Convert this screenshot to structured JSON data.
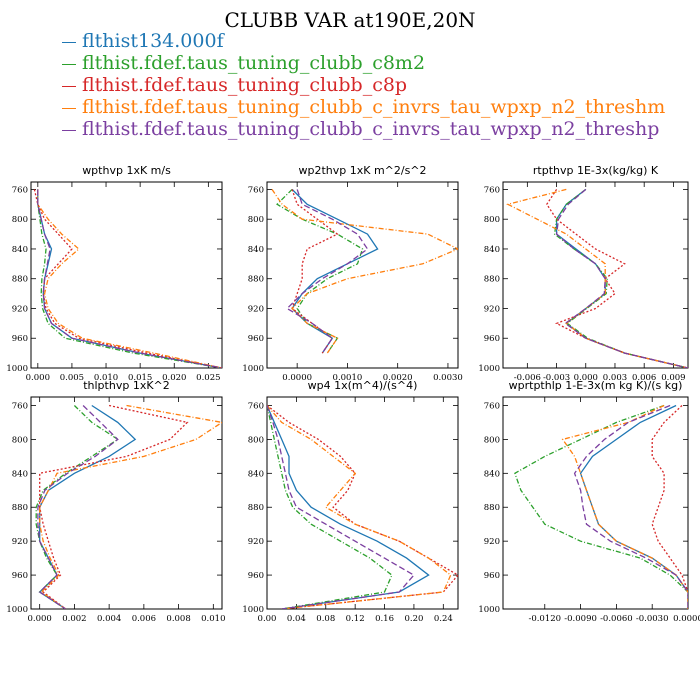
{
  "title": "CLUBB VAR at190E,20N",
  "legend": [
    {
      "label": "flthist134.000f",
      "color": "#1f77b4"
    },
    {
      "label": "flthist.fdef.taus_tuning_clubb_c8m2",
      "color": "#2ca02c"
    },
    {
      "label": "flthist.fdef.taus_tuning_clubb_c8p",
      "color": "#d62728"
    },
    {
      "label": "flthist.fdef.taus_tuning_clubb_c_invrs_tau_wpxp_n2_threshm",
      "color": "#ff7f0e"
    },
    {
      "label": "flthist.fdef.taus_tuning_clubb_c_invrs_tau_wpxp_n2_threshp",
      "color": "#7b3fa0"
    }
  ],
  "chart_data": [
    {
      "type": "line",
      "title": "wpthvp  1xK m/s",
      "xlim": [
        -0.001,
        0.027
      ],
      "ylim": [
        1000,
        750
      ],
      "xticks": [
        0.0,
        0.005,
        0.01,
        0.015,
        0.02,
        0.025
      ],
      "xtick_labels": [
        "0.000",
        "0.005",
        "0.010",
        "0.015",
        "0.020",
        "0.025"
      ],
      "yticks": [
        760,
        800,
        840,
        880,
        920,
        960,
        1000
      ],
      "y": [
        760,
        780,
        800,
        820,
        840,
        860,
        880,
        900,
        920,
        940,
        960,
        980,
        1000
      ],
      "series": [
        {
          "color": "#1f77b4",
          "dash": "",
          "values": [
            0.0,
            0.0,
            0.0005,
            0.001,
            0.002,
            0.0015,
            0.001,
            0.0008,
            0.001,
            0.002,
            0.005,
            0.015,
            0.027
          ]
        },
        {
          "color": "#2ca02c",
          "dash": "5,2,1,2",
          "values": [
            0.0,
            0.0,
            0.0003,
            0.0006,
            0.0012,
            0.001,
            0.0006,
            0.0005,
            0.0007,
            0.0015,
            0.004,
            0.014,
            0.027
          ]
        },
        {
          "color": "#d62728",
          "dash": "2,2",
          "values": [
            -0.0005,
            0.0,
            0.001,
            0.003,
            0.005,
            0.003,
            0.001,
            0.0008,
            0.0012,
            0.0025,
            0.006,
            0.016,
            0.027
          ]
        },
        {
          "color": "#ff7f0e",
          "dash": "5,2,1,2",
          "values": [
            0.0,
            0.0,
            0.0015,
            0.0035,
            0.006,
            0.0035,
            0.0015,
            0.001,
            0.0015,
            0.003,
            0.0065,
            0.017,
            0.027
          ]
        },
        {
          "color": "#7b3fa0",
          "dash": "6,3",
          "values": [
            0.0,
            0.0,
            0.0005,
            0.001,
            0.0018,
            0.0014,
            0.001,
            0.0008,
            0.001,
            0.002,
            0.005,
            0.015,
            0.027
          ]
        }
      ]
    },
    {
      "type": "line",
      "title": "wp2thvp  1xK m^2/s^2",
      "xlim": [
        -0.0006,
        0.0032
      ],
      "ylim": [
        1000,
        750
      ],
      "xticks": [
        0.0,
        0.001,
        0.002,
        0.003
      ],
      "xtick_labels": [
        "0.0000",
        "0.0010",
        "0.0020",
        "0.0030"
      ],
      "yticks": [
        760,
        800,
        840,
        880,
        920,
        960,
        1000
      ],
      "y": [
        760,
        780,
        800,
        820,
        840,
        860,
        880,
        900,
        920,
        940,
        960,
        980
      ],
      "series": [
        {
          "color": "#1f77b4",
          "dash": "",
          "values": [
            -0.0001,
            0.0002,
            0.0008,
            0.0014,
            0.0016,
            0.001,
            0.0004,
            0.0001,
            -0.0001,
            0.0002,
            0.0007,
            0.0005
          ]
        },
        {
          "color": "#2ca02c",
          "dash": "5,2,1,2",
          "values": [
            -0.0001,
            -0.0004,
            0.0001,
            0.0008,
            0.0013,
            0.0012,
            0.0006,
            0.0002,
            0.0,
            0.0002,
            0.0008,
            0.0006
          ]
        },
        {
          "color": "#d62728",
          "dash": "2,2",
          "values": [
            -0.0001,
            0.0,
            0.0004,
            0.0008,
            0.0002,
            0.0001,
            0.0001,
            0.0,
            -0.0001,
            0.0003,
            0.0007,
            0.0005
          ]
        },
        {
          "color": "#ff7f0e",
          "dash": "5,2,1,2",
          "values": [
            -0.0005,
            -0.0003,
            0.0001,
            0.0026,
            0.0032,
            0.0025,
            0.001,
            0.0002,
            -0.0001,
            0.0002,
            0.0008,
            0.0006
          ]
        },
        {
          "color": "#7b3fa0",
          "dash": "6,3",
          "values": [
            0.0,
            0.0001,
            0.0007,
            0.0012,
            0.0014,
            0.001,
            0.0005,
            0.0001,
            -0.0002,
            0.0003,
            0.0007,
            0.0005
          ]
        }
      ]
    },
    {
      "type": "line",
      "title": "rtpthvp  1E-3x(kg/kg) K",
      "xlim": [
        -0.0085,
        0.0105
      ],
      "ylim": [
        1000,
        750
      ],
      "xticks": [
        -0.006,
        -0.003,
        0.0,
        0.003,
        0.006,
        0.009
      ],
      "xtick_labels": [
        "-0.006",
        "-0.003",
        "0.000",
        "0.003",
        "0.006",
        "0.009"
      ],
      "yticks": [
        760,
        800,
        840,
        880,
        920,
        960,
        1000
      ],
      "y": [
        760,
        780,
        800,
        820,
        840,
        860,
        880,
        900,
        920,
        940,
        960,
        980,
        1000
      ],
      "series": [
        {
          "color": "#1f77b4",
          "dash": "",
          "values": [
            0.0,
            -0.002,
            -0.003,
            -0.003,
            -0.001,
            0.001,
            0.002,
            0.002,
            0.0,
            -0.002,
            0.0,
            0.004,
            0.0105
          ]
        },
        {
          "color": "#2ca02c",
          "dash": "5,2,1,2",
          "values": [
            0.0,
            -0.002,
            -0.003,
            -0.0032,
            -0.0012,
            0.001,
            0.0022,
            0.0021,
            0.0001,
            -0.0019,
            0.0002,
            0.004,
            0.0105
          ]
        },
        {
          "color": "#d62728",
          "dash": "2,2",
          "values": [
            -0.003,
            -0.004,
            -0.003,
            -0.001,
            0.001,
            0.004,
            0.002,
            0.003,
            0.001,
            -0.003,
            0.0,
            0.004,
            0.0105
          ]
        },
        {
          "color": "#ff7f0e",
          "dash": "5,2,1,2",
          "values": [
            -0.002,
            -0.008,
            -0.005,
            -0.002,
            0.0,
            0.002,
            0.002,
            0.002,
            0.0,
            -0.002,
            0.0,
            0.004,
            0.0105
          ]
        },
        {
          "color": "#7b3fa0",
          "dash": "6,3",
          "values": [
            0.0,
            -0.0018,
            -0.0028,
            -0.003,
            -0.0012,
            0.001,
            0.002,
            0.0019,
            0.0,
            -0.0021,
            0.0,
            0.004,
            0.0105
          ]
        }
      ]
    },
    {
      "type": "line",
      "title": "thlpthvp  1xK^2",
      "xlim": [
        -0.0005,
        0.0105
      ],
      "ylim": [
        1000,
        750
      ],
      "xticks": [
        0.0,
        0.002,
        0.004,
        0.006,
        0.008,
        0.01
      ],
      "xtick_labels": [
        "0.000",
        "0.002",
        "0.004",
        "0.006",
        "0.008",
        "0.010"
      ],
      "yticks": [
        760,
        800,
        840,
        880,
        920,
        960,
        1000
      ],
      "y": [
        760,
        780,
        800,
        820,
        840,
        860,
        880,
        900,
        920,
        940,
        960,
        980,
        1000
      ],
      "series": [
        {
          "color": "#1f77b4",
          "dash": "",
          "values": [
            0.003,
            0.0045,
            0.0055,
            0.004,
            0.002,
            0.0005,
            0.0,
            0.0,
            0.0,
            0.0005,
            0.001,
            0.0,
            0.0015
          ]
        },
        {
          "color": "#2ca02c",
          "dash": "5,2,1,2",
          "values": [
            0.002,
            0.003,
            0.0045,
            0.003,
            0.0015,
            0.0002,
            -0.0002,
            -0.0002,
            0.0,
            0.0004,
            0.001,
            0.0,
            0.0015
          ]
        },
        {
          "color": "#d62728",
          "dash": "2,2",
          "values": [
            0.004,
            0.0085,
            0.0075,
            0.005,
            0.0,
            0.0,
            0.0,
            0.0002,
            0.0005,
            0.0008,
            0.0012,
            0.0002,
            0.0015
          ]
        },
        {
          "color": "#ff7f0e",
          "dash": "5,2,1,2",
          "values": [
            0.005,
            0.0105,
            0.009,
            0.006,
            0.001,
            0.0005,
            0.0,
            0.0,
            0.0002,
            0.0006,
            0.0011,
            0.0001,
            0.0015
          ]
        },
        {
          "color": "#7b3fa0",
          "dash": "6,3",
          "values": [
            0.0025,
            0.0035,
            0.0045,
            0.0032,
            0.0016,
            0.0003,
            -0.0001,
            -0.0001,
            0.0,
            0.0005,
            0.001,
            0.0,
            0.0015
          ]
        }
      ]
    },
    {
      "type": "line",
      "title": "wp4  1x(m^4)/(s^4)",
      "xlim": [
        0.0,
        0.26
      ],
      "ylim": [
        1000,
        750
      ],
      "xticks": [
        0.0,
        0.04,
        0.08,
        0.12,
        0.16,
        0.2,
        0.24
      ],
      "xtick_labels": [
        "0.00",
        "0.04",
        "0.08",
        "0.12",
        "0.16",
        "0.20",
        "0.24"
      ],
      "yticks": [
        760,
        800,
        840,
        880,
        920,
        960,
        1000
      ],
      "y": [
        760,
        780,
        800,
        820,
        840,
        860,
        880,
        900,
        920,
        940,
        960,
        980,
        1000
      ],
      "series": [
        {
          "color": "#1f77b4",
          "dash": "",
          "values": [
            0.0,
            0.01,
            0.02,
            0.03,
            0.03,
            0.04,
            0.06,
            0.1,
            0.15,
            0.19,
            0.22,
            0.18,
            0.02
          ]
        },
        {
          "color": "#2ca02c",
          "dash": "5,2,1,2",
          "values": [
            0.0,
            0.005,
            0.01,
            0.015,
            0.02,
            0.025,
            0.035,
            0.06,
            0.1,
            0.14,
            0.17,
            0.16,
            0.02
          ]
        },
        {
          "color": "#d62728",
          "dash": "2,2",
          "values": [
            0.0,
            0.03,
            0.07,
            0.1,
            0.12,
            0.11,
            0.09,
            0.12,
            0.18,
            0.22,
            0.26,
            0.24,
            0.02
          ]
        },
        {
          "color": "#ff7f0e",
          "dash": "5,2,1,2",
          "values": [
            0.0,
            0.02,
            0.06,
            0.09,
            0.12,
            0.1,
            0.08,
            0.12,
            0.18,
            0.22,
            0.25,
            0.24,
            0.02
          ]
        },
        {
          "color": "#7b3fa0",
          "dash": "6,3",
          "values": [
            0.0,
            0.008,
            0.015,
            0.02,
            0.025,
            0.03,
            0.04,
            0.08,
            0.12,
            0.16,
            0.2,
            0.18,
            0.02
          ]
        }
      ]
    },
    {
      "type": "line",
      "title": "wprtpthlp  1-E-3x(m kg K)/(s kg)",
      "xlim": [
        -0.0155,
        0.0
      ],
      "ylim": [
        1000,
        750
      ],
      "xticks": [
        -0.012,
        -0.009,
        -0.006,
        -0.003,
        0.0
      ],
      "xtick_labels": [
        "-0.0120",
        "-0.0090",
        "-0.0060",
        "-0.0030",
        "0.0000"
      ],
      "yticks": [
        760,
        800,
        840,
        880,
        920,
        960,
        1000
      ],
      "y": [
        760,
        780,
        800,
        820,
        840,
        860,
        880,
        900,
        920,
        940,
        960,
        980,
        1000
      ],
      "series": [
        {
          "color": "#1f77b4",
          "dash": "",
          "values": [
            -0.001,
            -0.004,
            -0.006,
            -0.008,
            -0.009,
            -0.0085,
            -0.008,
            -0.0075,
            -0.006,
            -0.003,
            -0.001,
            0.0,
            0.0
          ]
        },
        {
          "color": "#2ca02c",
          "dash": "5,2,1,2",
          "values": [
            -0.002,
            -0.006,
            -0.009,
            -0.012,
            -0.0145,
            -0.014,
            -0.013,
            -0.012,
            -0.009,
            -0.004,
            -0.0015,
            0.0,
            0.0
          ]
        },
        {
          "color": "#d62728",
          "dash": "2,2",
          "values": [
            -0.0005,
            -0.002,
            -0.003,
            -0.003,
            -0.002,
            -0.002,
            -0.0025,
            -0.003,
            -0.0025,
            -0.0015,
            -0.0005,
            0.0,
            0.0
          ]
        },
        {
          "color": "#ff7f0e",
          "dash": "5,2,1,2",
          "values": [
            -0.002,
            -0.005,
            -0.0105,
            -0.0095,
            -0.009,
            -0.0085,
            -0.008,
            -0.0075,
            -0.006,
            -0.003,
            -0.001,
            0.0,
            0.0
          ]
        },
        {
          "color": "#7b3fa0",
          "dash": "6,3",
          "values": [
            -0.0015,
            -0.005,
            -0.007,
            -0.0085,
            -0.0095,
            -0.009,
            -0.0088,
            -0.0085,
            -0.0065,
            -0.0035,
            -0.001,
            0.0,
            0.0
          ]
        }
      ]
    }
  ]
}
